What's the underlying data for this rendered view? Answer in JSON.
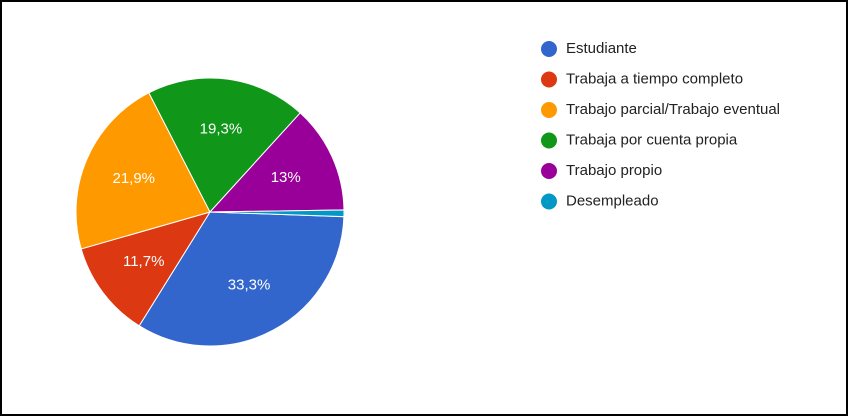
{
  "chart_data": {
    "type": "pie",
    "categories": [
      "Estudiante",
      "Trabaja a tiempo completo",
      "Trabajo parcial/Trabajo eventual",
      "Trabaja por cuenta propia",
      "Trabajo propio",
      "Desempleado"
    ],
    "values": [
      33.3,
      11.7,
      21.9,
      19.3,
      13,
      0.8
    ],
    "value_labels": [
      "33,3%",
      "11,7%",
      "21,9%",
      "19,3%",
      "13%",
      null
    ],
    "colors": [
      "#3366cc",
      "#dc3912",
      "#ff9900",
      "#109618",
      "#990099",
      "#0099c6"
    ],
    "legend": "right"
  }
}
